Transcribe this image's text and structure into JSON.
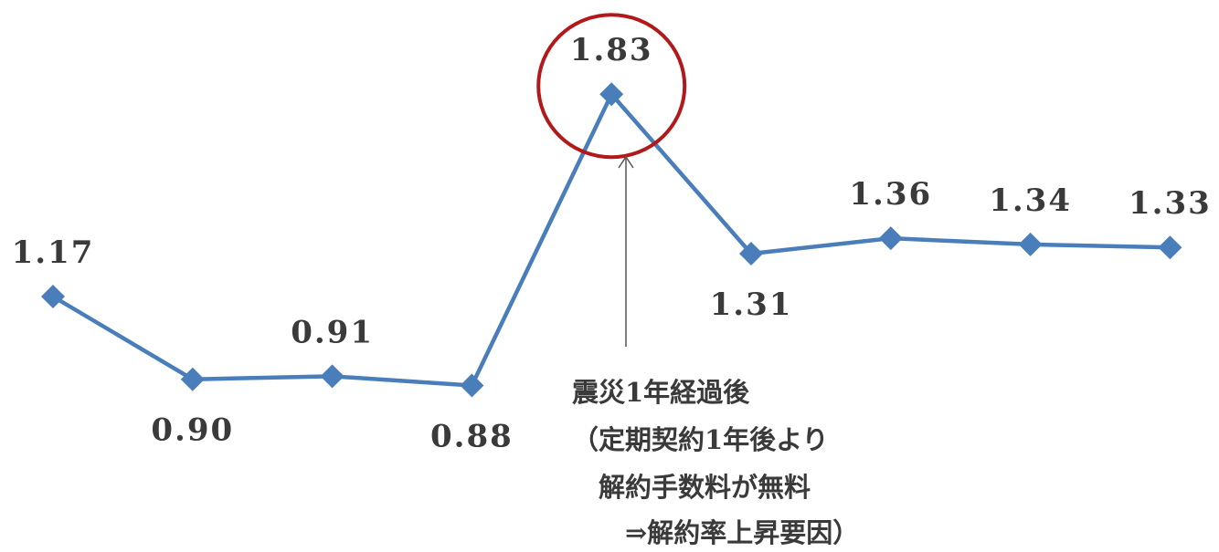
{
  "chart_data": {
    "type": "line",
    "series": [
      {
        "values": [
          1.17,
          0.9,
          0.91,
          0.88,
          1.83,
          1.31,
          1.36,
          1.34,
          1.33
        ],
        "labels": [
          "1.17",
          "0.90",
          "0.91",
          "0.88",
          "1.83",
          "1.31",
          "1.36",
          "1.34",
          "1.33"
        ]
      }
    ],
    "grid": false,
    "legend": "none",
    "highlight_index": 4,
    "annotation": {
      "lines": [
        "震災1年経過後",
        "（定期契約1年後より",
        "　解約手数料が無料",
        "　　⇒解約率上昇要因）"
      ]
    }
  },
  "colors": {
    "line": "#4a7ebb",
    "marker": "#4a7ebb",
    "highlight_circle": "#b2191b",
    "text": "#3a3a3a",
    "arrow": "#555555"
  }
}
